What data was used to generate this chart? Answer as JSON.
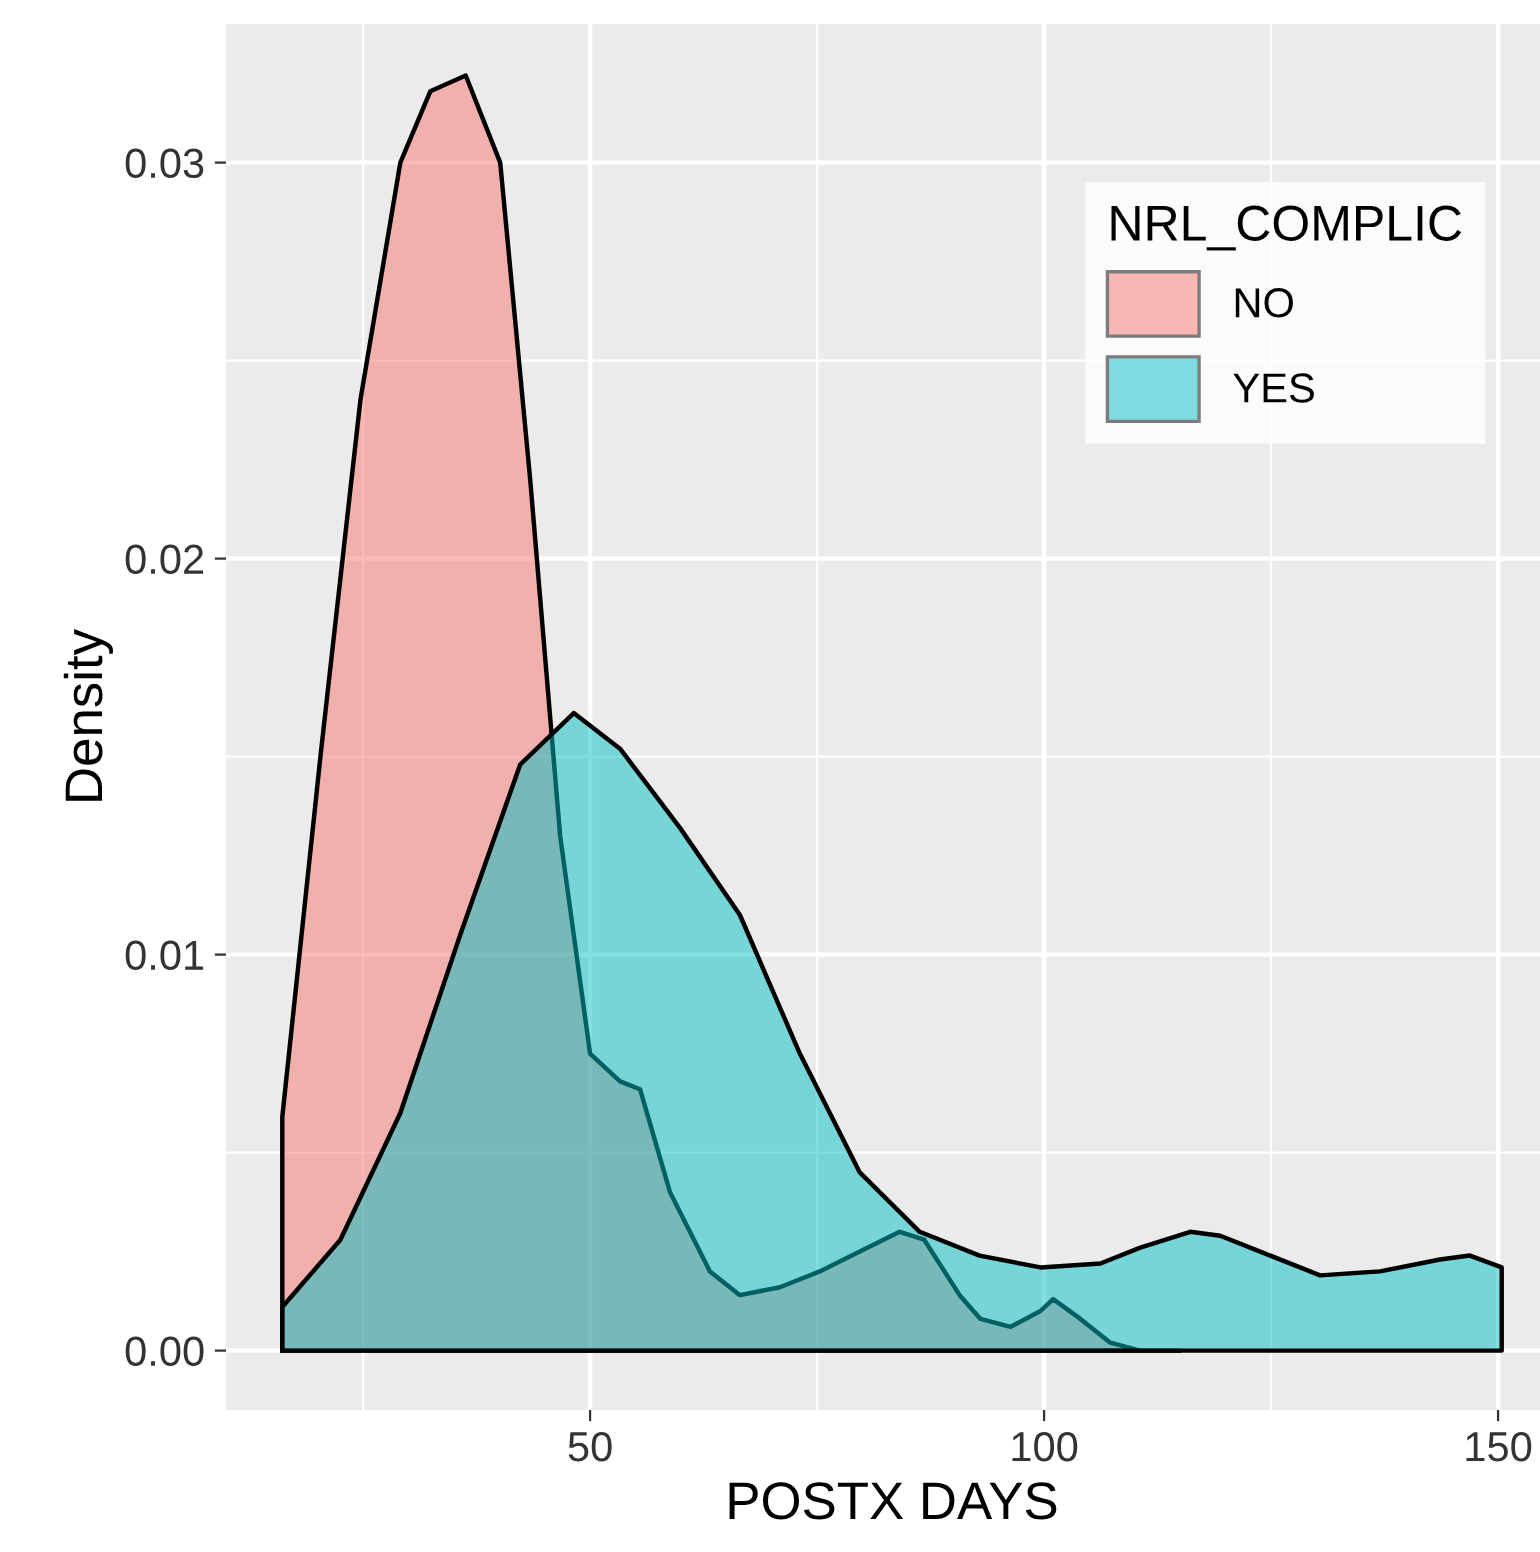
{
  "chart_data": {
    "type": "area",
    "xlabel": "POSTX DAYS",
    "ylabel": "Density",
    "legend_title": "NRL_COMPLIC",
    "legend": "top right",
    "grid": true,
    "xlim": [
      9.9,
      156.6
    ],
    "ylim": [
      -0.0015,
      0.0335
    ],
    "xticks": [
      50,
      100,
      150
    ],
    "yticks": [
      {
        "value": 0,
        "label": "0.00"
      },
      {
        "value": 0.01,
        "label": "0.01"
      },
      {
        "value": 0.02,
        "label": "0.02"
      },
      {
        "value": 0.03,
        "label": "0.03"
      }
    ],
    "series": [
      {
        "name": "NO",
        "color": "#f8766d",
        "x": [
          16.1,
          20.3,
          24.7,
          29.1,
          32.4,
          36.3,
          40.1,
          43.4,
          46.7,
          50,
          53.3,
          55.5,
          58.8,
          63.2,
          66.5,
          70.9,
          75.3,
          79.7,
          84.1,
          86.8,
          90.7,
          93,
          96.3,
          99.6,
          101,
          104,
          107.3,
          110.6,
          115
        ],
        "values": [
          0.0059,
          0.015,
          0.024,
          0.03,
          0.0318,
          0.0322,
          0.03,
          0.022,
          0.013,
          0.0075,
          0.0068,
          0.0066,
          0.004,
          0.002,
          0.0014,
          0.0016,
          0.002,
          0.0025,
          0.003,
          0.0028,
          0.0014,
          0.0008,
          0.0006,
          0.001,
          0.0013,
          0.0008,
          0.0002,
          0.0,
          0.0
        ]
      },
      {
        "name": "YES",
        "color": "#00bfc4",
        "x": [
          16.1,
          22.5,
          29.1,
          35.7,
          42.3,
          48.2,
          53.3,
          59.9,
          66.5,
          73.1,
          79.7,
          86.3,
          92.9,
          99.6,
          106.2,
          110.6,
          116.1,
          119.4,
          123.8,
          130.4,
          137,
          143.6,
          146.9,
          150.4
        ],
        "values": [
          0.0011,
          0.0028,
          0.006,
          0.0105,
          0.0148,
          0.0161,
          0.0152,
          0.0132,
          0.011,
          0.0075,
          0.0045,
          0.003,
          0.0024,
          0.0021,
          0.0022,
          0.0026,
          0.003,
          0.0029,
          0.0025,
          0.0019,
          0.002,
          0.0023,
          0.0024,
          0.0021
        ]
      }
    ]
  }
}
